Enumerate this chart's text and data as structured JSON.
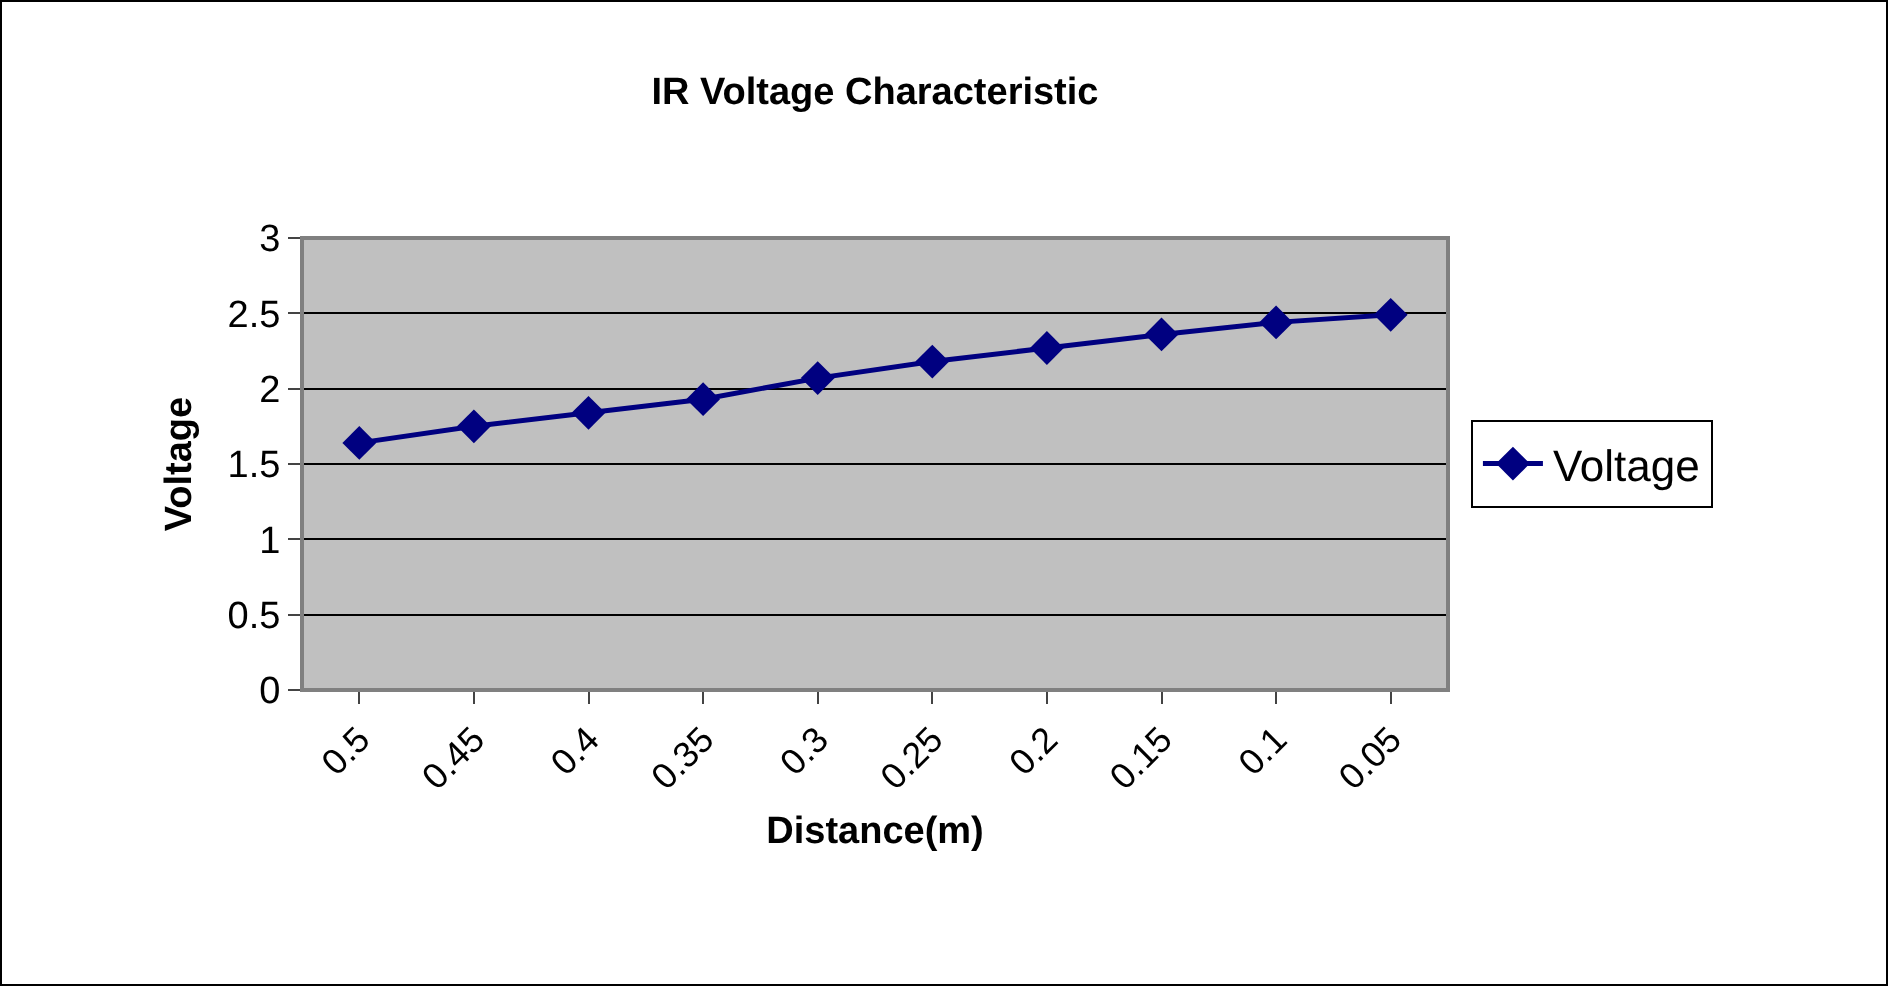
{
  "chart_data": {
    "type": "line",
    "title": "IR Voltage Characteristic",
    "xlabel": "Distance(m)",
    "ylabel": "Voltage",
    "categories": [
      "0.5",
      "0.45",
      "0.4",
      "0.35",
      "0.3",
      "0.25",
      "0.2",
      "0.15",
      "0.1",
      "0.05"
    ],
    "series": [
      {
        "name": "Voltage",
        "color": "#000080",
        "values": [
          1.64,
          1.75,
          1.84,
          1.93,
          2.07,
          2.18,
          2.27,
          2.36,
          2.44,
          2.49
        ]
      }
    ],
    "ylim": [
      0,
      3
    ],
    "yticks": [
      0,
      0.5,
      1,
      1.5,
      2,
      2.5,
      3
    ],
    "grid": "y",
    "legend": "right",
    "marker": "diamond",
    "line_style": "solid"
  }
}
